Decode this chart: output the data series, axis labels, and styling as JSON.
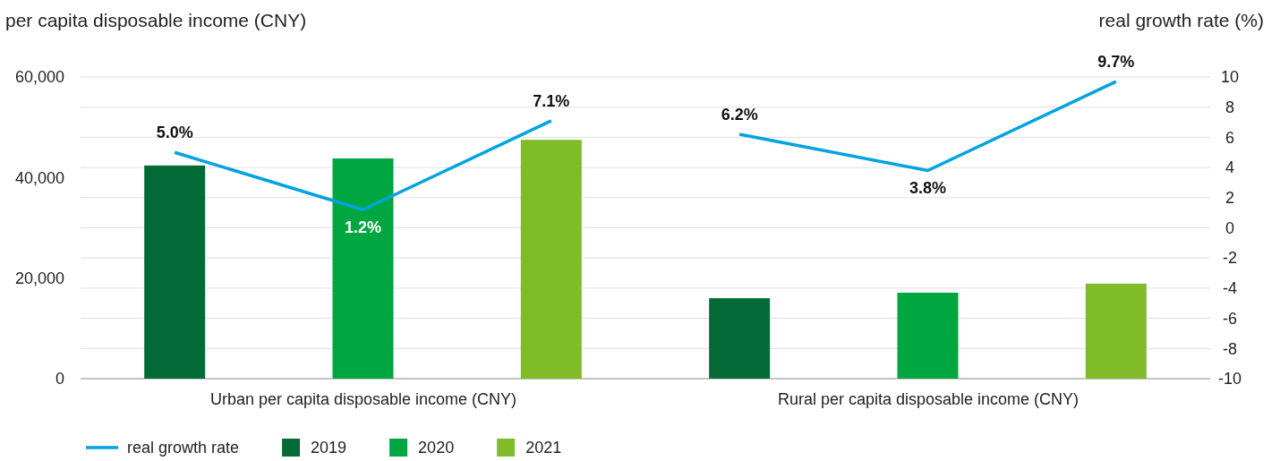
{
  "chart_data": {
    "type": "bar",
    "ylabel": "per capita disposable income (CNY)",
    "y2label": "real growth rate (%)",
    "categories": [
      null,
      "Urban per capita disposable income (CNY)",
      null,
      null,
      "Rural per capita disposable income (CNY)",
      null
    ],
    "series": [
      {
        "name": "real growth rate",
        "type": "line",
        "axis": "y2",
        "color": "#00a3e0",
        "values": [
          5.0,
          1.2,
          7.1,
          null,
          null,
          null
        ],
        "value_labels": [
          "5.0%",
          "1.2%",
          "7.1%",
          null,
          null,
          null
        ]
      },
      {
        "type": "line",
        "axis": "y2",
        "color": "#00a3e0",
        "values": [
          null,
          null,
          null,
          6.2,
          3.8,
          9.7
        ],
        "value_labels": [
          null,
          null,
          null,
          "6.2%",
          "3.8%",
          "9.7%"
        ]
      },
      {
        "name": "2019",
        "color": "#046a38",
        "values": [
          42400,
          null,
          null,
          16000,
          null,
          null
        ]
      },
      {
        "name": "2020",
        "color": "#00a63f",
        "values": [
          null,
          43800,
          null,
          null,
          17100,
          null
        ]
      },
      {
        "name": "2021",
        "color": "#80bc29",
        "values": [
          null,
          null,
          47500,
          null,
          null,
          18900
        ]
      }
    ],
    "ylim": [
      0,
      60000
    ],
    "yticks": [
      {
        "value": 0,
        "label": "0"
      },
      {
        "value": 20000,
        "label": "20,000"
      },
      {
        "value": 40000,
        "label": "40,000"
      },
      {
        "value": 60000,
        "label": "60,000"
      }
    ],
    "y2lim": [
      -10,
      10
    ],
    "y2ticks": [
      -10,
      -8,
      -6,
      -4,
      -2,
      0,
      2,
      4,
      6,
      8,
      10
    ],
    "grid": "y2",
    "legend": "bottom left"
  }
}
